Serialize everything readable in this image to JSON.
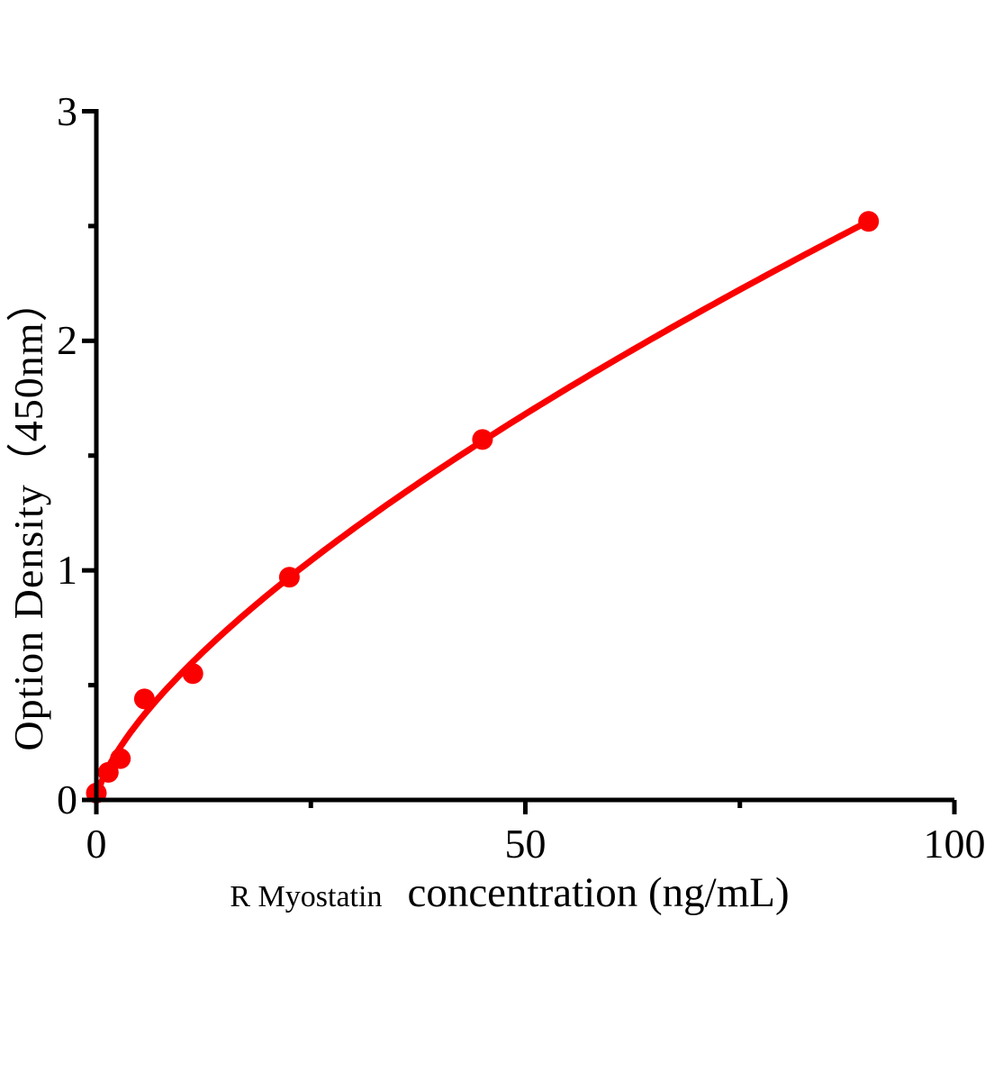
{
  "figure": {
    "background": "#ffffff"
  },
  "chart_data": {
    "type": "scatter",
    "title": "",
    "ylabel": "Option Density（450nm）",
    "xlabel_part1": "R Myostatin",
    "xlabel_part2": "concentration (ng/mL)",
    "xlim": [
      0,
      100
    ],
    "ylim": [
      0,
      3
    ],
    "x_ticks_major": [
      0,
      50,
      100
    ],
    "x_tick_labels": [
      "0",
      "50",
      "100"
    ],
    "x_ticks_minor": [
      25,
      75
    ],
    "y_ticks_major": [
      0,
      1,
      2,
      3
    ],
    "y_tick_labels": [
      "0",
      "1",
      "2",
      "3"
    ],
    "y_ticks_minor": [
      0.5,
      1.5,
      2.5
    ],
    "grid": false,
    "legend": "none",
    "points": [
      {
        "x": 0,
        "y": 0.03
      },
      {
        "x": 1.4,
        "y": 0.12
      },
      {
        "x": 2.8,
        "y": 0.18
      },
      {
        "x": 5.6,
        "y": 0.44
      },
      {
        "x": 11.25,
        "y": 0.55
      },
      {
        "x": 22.5,
        "y": 0.97
      },
      {
        "x": 45,
        "y": 1.57
      },
      {
        "x": 90,
        "y": 2.52
      }
    ],
    "fit_curve": {
      "type": "power",
      "equation": "y = a * x^b",
      "a": 0.1135,
      "b": 0.689,
      "x_start": 0,
      "x_end": 90
    },
    "series_color": "#fa0000",
    "axis_color": "#000000"
  }
}
